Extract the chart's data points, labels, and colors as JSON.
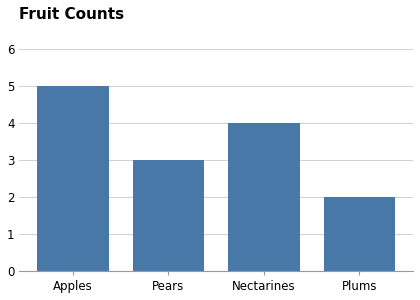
{
  "categories": [
    "Apples",
    "Pears",
    "Nectarines",
    "Plums"
  ],
  "values": [
    5,
    3,
    4,
    2
  ],
  "bar_color": "#4878a8",
  "title": "Fruit Counts",
  "title_fontsize": 11,
  "title_fontweight": "bold",
  "ylim": [
    0,
    6.6
  ],
  "yticks": [
    0,
    1,
    2,
    3,
    4,
    5,
    6
  ],
  "grid_color": "#d0d0d0",
  "bg_color": "#ffffff",
  "tick_label_fontsize": 8.5,
  "bar_width": 0.75
}
